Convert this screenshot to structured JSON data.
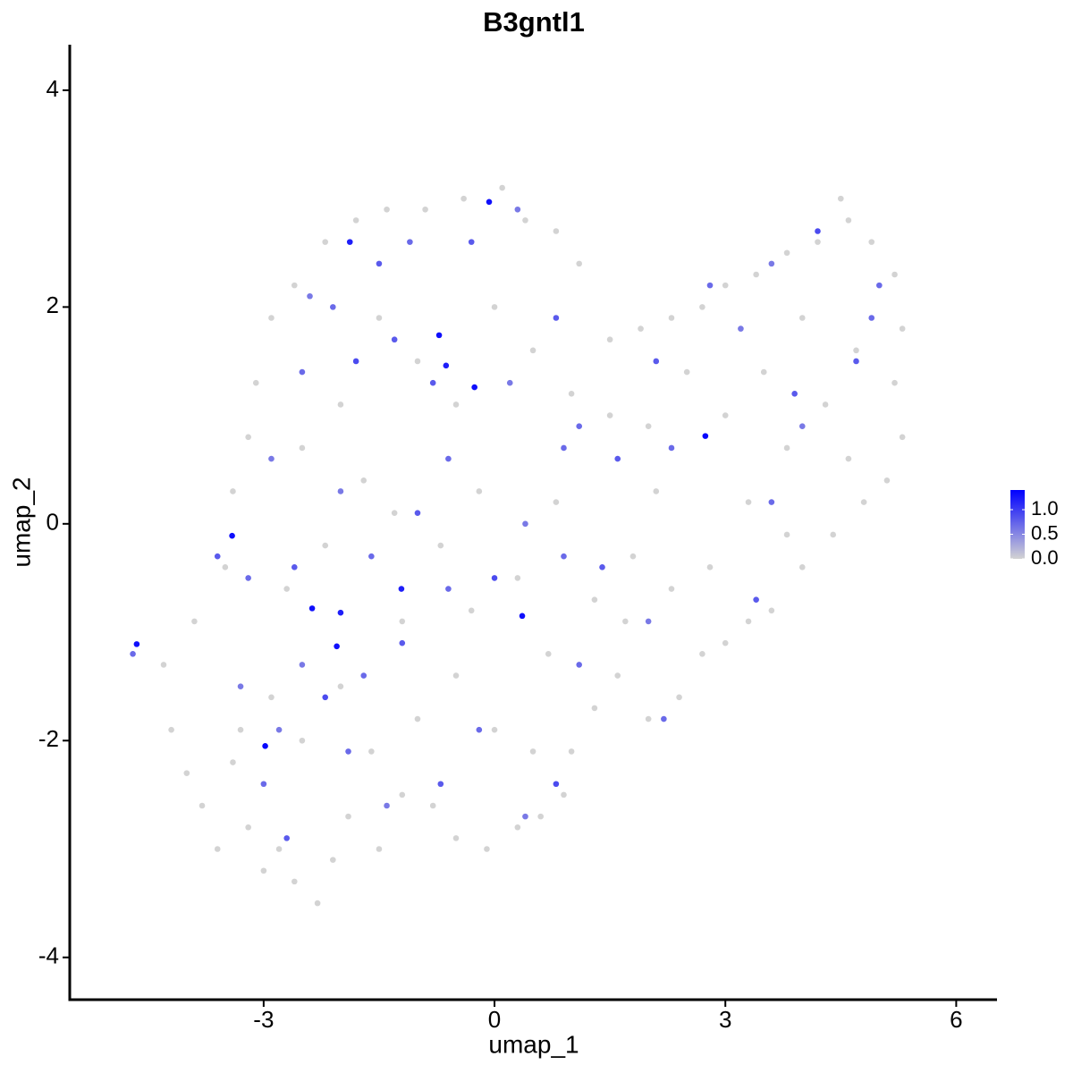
{
  "chart_data": {
    "type": "scatter",
    "title": "B3gntl1",
    "x_label": "umap_1",
    "y_label": "umap_2",
    "xlim": [
      -5.52,
      6.53
    ],
    "ylim": [
      -4.39,
      4.42
    ],
    "xticks": [
      -3,
      0,
      3,
      6
    ],
    "yticks": [
      -4,
      -2,
      0,
      2,
      4
    ],
    "low_color": "#d3d3d3",
    "high_color": "#0000ff",
    "colorbar": {
      "lim": [
        0,
        1.4
      ],
      "ticks": [
        {
          "value": 0,
          "label": "0.0"
        },
        {
          "value": 0.5,
          "label": "0.5"
        },
        {
          "value": 1,
          "label": "1.0"
        }
      ]
    },
    "points": [
      {
        "x": -4.2,
        "y": -1.9,
        "expression": 0
      },
      {
        "x": -4.0,
        "y": -2.3,
        "expression": 0
      },
      {
        "x": -3.8,
        "y": -2.6,
        "expression": 0
      },
      {
        "x": -3.6,
        "y": -3.0,
        "expression": 0
      },
      {
        "x": -3.4,
        "y": -2.2,
        "expression": 0
      },
      {
        "x": -3.2,
        "y": -2.8,
        "expression": 0
      },
      {
        "x": -3.0,
        "y": -3.2,
        "expression": 0
      },
      {
        "x": -2.8,
        "y": -3.0,
        "expression": 0
      },
      {
        "x": -2.6,
        "y": -3.3,
        "expression": 0
      },
      {
        "x": -2.3,
        "y": -3.5,
        "expression": 0
      },
      {
        "x": -2.1,
        "y": -3.1,
        "expression": 0
      },
      {
        "x": -1.9,
        "y": -2.7,
        "expression": 0
      },
      {
        "x": -1.5,
        "y": -3.0,
        "expression": 0
      },
      {
        "x": -1.2,
        "y": -2.5,
        "expression": 0
      },
      {
        "x": -0.8,
        "y": -2.6,
        "expression": 0
      },
      {
        "x": -0.5,
        "y": -2.9,
        "expression": 0
      },
      {
        "x": -0.1,
        "y": -3.0,
        "expression": 0
      },
      {
        "x": 0.3,
        "y": -2.8,
        "expression": 0
      },
      {
        "x": 0.6,
        "y": -2.7,
        "expression": 0
      },
      {
        "x": 0.9,
        "y": -2.5,
        "expression": 0
      },
      {
        "x": 1.0,
        "y": -2.1,
        "expression": 0
      },
      {
        "x": 1.3,
        "y": -1.7,
        "expression": 0
      },
      {
        "x": 1.6,
        "y": -1.4,
        "expression": 0
      },
      {
        "x": 2.0,
        "y": -1.8,
        "expression": 0
      },
      {
        "x": 2.4,
        "y": -1.6,
        "expression": 0
      },
      {
        "x": 2.7,
        "y": -1.2,
        "expression": 0
      },
      {
        "x": 3.0,
        "y": -1.1,
        "expression": 0
      },
      {
        "x": 3.3,
        "y": -0.9,
        "expression": 0
      },
      {
        "x": 3.6,
        "y": -0.8,
        "expression": 0
      },
      {
        "x": 4.0,
        "y": -0.4,
        "expression": 0
      },
      {
        "x": 4.4,
        "y": -0.1,
        "expression": 0
      },
      {
        "x": 4.8,
        "y": 0.2,
        "expression": 0
      },
      {
        "x": 5.1,
        "y": 0.4,
        "expression": 0
      },
      {
        "x": 5.3,
        "y": 0.8,
        "expression": 0
      },
      {
        "x": 5.2,
        "y": 1.3,
        "expression": 0
      },
      {
        "x": 5.3,
        "y": 1.8,
        "expression": 0
      },
      {
        "x": 5.2,
        "y": 2.3,
        "expression": 0
      },
      {
        "x": 4.9,
        "y": 2.6,
        "expression": 0
      },
      {
        "x": 4.6,
        "y": 2.8,
        "expression": 0
      },
      {
        "x": 4.5,
        "y": 3.0,
        "expression": 0
      },
      {
        "x": 4.2,
        "y": 2.6,
        "expression": 0
      },
      {
        "x": 3.8,
        "y": 2.5,
        "expression": 0
      },
      {
        "x": 3.4,
        "y": 2.3,
        "expression": 0
      },
      {
        "x": 3.0,
        "y": 2.2,
        "expression": 0
      },
      {
        "x": 2.7,
        "y": 2.0,
        "expression": 0
      },
      {
        "x": 2.3,
        "y": 1.9,
        "expression": 0
      },
      {
        "x": 1.9,
        "y": 1.8,
        "expression": 0
      },
      {
        "x": 1.5,
        "y": 1.7,
        "expression": 0
      },
      {
        "x": 1.1,
        "y": 2.4,
        "expression": 0
      },
      {
        "x": 0.8,
        "y": 2.7,
        "expression": 0
      },
      {
        "x": 0.4,
        "y": 2.8,
        "expression": 0
      },
      {
        "x": 0.1,
        "y": 3.1,
        "expression": 0
      },
      {
        "x": -0.4,
        "y": 3.0,
        "expression": 0
      },
      {
        "x": -0.9,
        "y": 2.9,
        "expression": 0
      },
      {
        "x": -1.4,
        "y": 2.9,
        "expression": 0
      },
      {
        "x": -1.8,
        "y": 2.8,
        "expression": 0
      },
      {
        "x": -2.2,
        "y": 2.6,
        "expression": 0
      },
      {
        "x": -2.6,
        "y": 2.2,
        "expression": 0
      },
      {
        "x": -2.9,
        "y": 1.9,
        "expression": 0
      },
      {
        "x": -3.1,
        "y": 1.3,
        "expression": 0
      },
      {
        "x": -3.2,
        "y": 0.8,
        "expression": 0
      },
      {
        "x": -3.4,
        "y": 0.3,
        "expression": 0
      },
      {
        "x": -3.5,
        "y": -0.4,
        "expression": 0
      },
      {
        "x": -3.9,
        "y": -0.9,
        "expression": 0
      },
      {
        "x": -4.3,
        "y": -1.3,
        "expression": 0
      },
      {
        "x": -2.5,
        "y": -2.0,
        "expression": 0
      },
      {
        "x": -2.0,
        "y": -1.5,
        "expression": 0
      },
      {
        "x": -1.6,
        "y": -2.1,
        "expression": 0
      },
      {
        "x": -1.0,
        "y": -1.8,
        "expression": 0
      },
      {
        "x": -0.5,
        "y": -1.4,
        "expression": 0
      },
      {
        "x": 0.0,
        "y": -1.9,
        "expression": 0
      },
      {
        "x": 0.5,
        "y": -2.1,
        "expression": 0
      },
      {
        "x": -2.7,
        "y": -0.6,
        "expression": 0
      },
      {
        "x": -2.2,
        "y": -0.2,
        "expression": 0
      },
      {
        "x": -1.7,
        "y": 0.4,
        "expression": 0
      },
      {
        "x": -1.2,
        "y": -0.9,
        "expression": 0
      },
      {
        "x": -0.7,
        "y": -0.2,
        "expression": 0
      },
      {
        "x": -0.2,
        "y": 0.3,
        "expression": 0
      },
      {
        "x": 0.3,
        "y": -0.5,
        "expression": 0
      },
      {
        "x": 0.8,
        "y": 0.2,
        "expression": 0
      },
      {
        "x": 1.3,
        "y": -0.7,
        "expression": 0
      },
      {
        "x": 1.8,
        "y": -0.3,
        "expression": 0
      },
      {
        "x": 2.3,
        "y": -0.6,
        "expression": 0
      },
      {
        "x": 2.8,
        "y": -0.4,
        "expression": 0
      },
      {
        "x": 3.3,
        "y": 0.2,
        "expression": 0
      },
      {
        "x": 3.8,
        "y": 0.7,
        "expression": 0
      },
      {
        "x": 4.3,
        "y": 1.1,
        "expression": 0
      },
      {
        "x": 4.7,
        "y": 1.6,
        "expression": 0
      },
      {
        "x": 3.5,
        "y": 1.4,
        "expression": 0
      },
      {
        "x": 3.0,
        "y": 1.0,
        "expression": 0
      },
      {
        "x": 2.5,
        "y": 1.4,
        "expression": 0
      },
      {
        "x": 2.0,
        "y": 0.9,
        "expression": 0
      },
      {
        "x": 1.5,
        "y": 1.0,
        "expression": 0
      },
      {
        "x": 1.0,
        "y": 1.2,
        "expression": 0
      },
      {
        "x": 0.5,
        "y": 1.6,
        "expression": 0
      },
      {
        "x": 0.0,
        "y": 2.0,
        "expression": 0
      },
      {
        "x": -0.5,
        "y": 1.1,
        "expression": 0
      },
      {
        "x": -1.0,
        "y": 1.5,
        "expression": 0
      },
      {
        "x": -1.5,
        "y": 1.9,
        "expression": 0
      },
      {
        "x": -2.0,
        "y": 1.1,
        "expression": 0
      },
      {
        "x": -2.5,
        "y": 0.7,
        "expression": 0
      },
      {
        "x": -2.9,
        "y": -1.6,
        "expression": 0
      },
      {
        "x": -3.3,
        "y": -1.9,
        "expression": 0
      },
      {
        "x": -1.3,
        "y": 0.1,
        "expression": 0
      },
      {
        "x": -0.3,
        "y": -0.8,
        "expression": 0
      },
      {
        "x": 0.7,
        "y": -1.2,
        "expression": 0
      },
      {
        "x": 1.7,
        "y": -0.9,
        "expression": 0
      },
      {
        "x": 2.1,
        "y": 0.3,
        "expression": 0
      },
      {
        "x": 4.0,
        "y": 1.9,
        "expression": 0
      },
      {
        "x": 4.6,
        "y": 0.6,
        "expression": 0
      },
      {
        "x": 3.8,
        "y": -0.1,
        "expression": 0
      },
      {
        "x": -4.7,
        "y": -1.2,
        "expression": 0.7
      },
      {
        "x": -3.6,
        "y": -0.3,
        "expression": 0.8
      },
      {
        "x": -3.3,
        "y": -1.5,
        "expression": 0.6
      },
      {
        "x": -3.0,
        "y": -2.4,
        "expression": 0.7
      },
      {
        "x": -2.7,
        "y": -2.9,
        "expression": 0.8
      },
      {
        "x": -2.5,
        "y": -1.3,
        "expression": 0.6
      },
      {
        "x": -2.2,
        "y": -1.6,
        "expression": 0.9
      },
      {
        "x": -1.9,
        "y": -2.1,
        "expression": 0.7
      },
      {
        "x": -1.4,
        "y": -2.6,
        "expression": 0.6
      },
      {
        "x": -0.7,
        "y": -2.4,
        "expression": 0.8
      },
      {
        "x": -0.2,
        "y": -1.9,
        "expression": 0.7
      },
      {
        "x": 0.4,
        "y": -2.7,
        "expression": 0.6
      },
      {
        "x": 0.8,
        "y": -2.4,
        "expression": 0.9
      },
      {
        "x": 1.1,
        "y": -1.3,
        "expression": 0.7
      },
      {
        "x": 1.4,
        "y": -0.4,
        "expression": 0.8
      },
      {
        "x": 2.2,
        "y": -1.8,
        "expression": 0.7
      },
      {
        "x": 2.0,
        "y": -0.9,
        "expression": 0.6
      },
      {
        "x": 3.4,
        "y": -0.7,
        "expression": 0.8
      },
      {
        "x": 3.6,
        "y": 0.2,
        "expression": 0.7
      },
      {
        "x": 4.0,
        "y": 0.9,
        "expression": 0.6
      },
      {
        "x": 4.7,
        "y": 1.5,
        "expression": 0.8
      },
      {
        "x": 5.0,
        "y": 2.2,
        "expression": 0.7
      },
      {
        "x": 4.2,
        "y": 2.7,
        "expression": 0.9
      },
      {
        "x": 3.6,
        "y": 2.4,
        "expression": 0.6
      },
      {
        "x": 2.8,
        "y": 2.2,
        "expression": 0.7
      },
      {
        "x": 2.1,
        "y": 1.5,
        "expression": 0.8
      },
      {
        "x": 1.1,
        "y": 0.9,
        "expression": 0.7
      },
      {
        "x": 0.8,
        "y": 1.9,
        "expression": 0.8
      },
      {
        "x": 0.2,
        "y": 1.3,
        "expression": 0.6
      },
      {
        "x": -0.6,
        "y": 0.6,
        "expression": 0.7
      },
      {
        "x": -1.3,
        "y": 1.7,
        "expression": 0.8
      },
      {
        "x": -1.8,
        "y": 1.5,
        "expression": 0.9
      },
      {
        "x": -2.5,
        "y": 1.4,
        "expression": 0.7
      },
      {
        "x": -2.9,
        "y": 0.6,
        "expression": 0.6
      },
      {
        "x": -3.2,
        "y": -0.5,
        "expression": 0.7
      },
      {
        "x": -2.6,
        "y": -0.4,
        "expression": 0.8
      },
      {
        "x": -2.0,
        "y": 0.3,
        "expression": 0.6
      },
      {
        "x": -1.6,
        "y": -0.3,
        "expression": 0.7
      },
      {
        "x": -1.0,
        "y": 0.1,
        "expression": 0.8
      },
      {
        "x": -0.6,
        "y": -0.6,
        "expression": 0.7
      },
      {
        "x": 0.0,
        "y": -0.5,
        "expression": 0.9
      },
      {
        "x": 0.4,
        "y": 0.0,
        "expression": 0.6
      },
      {
        "x": 0.9,
        "y": -0.3,
        "expression": 0.7
      },
      {
        "x": 1.6,
        "y": 0.6,
        "expression": 0.8
      },
      {
        "x": 2.3,
        "y": 0.7,
        "expression": 0.7
      },
      {
        "x": 3.2,
        "y": 1.8,
        "expression": 0.6
      },
      {
        "x": 3.9,
        "y": 1.2,
        "expression": 0.8
      },
      {
        "x": 4.9,
        "y": 1.9,
        "expression": 0.7
      },
      {
        "x": -1.1,
        "y": 2.6,
        "expression": 0.7
      },
      {
        "x": -0.3,
        "y": 2.6,
        "expression": 0.8
      },
      {
        "x": 0.3,
        "y": 2.9,
        "expression": 0.6
      },
      {
        "x": -2.1,
        "y": 2.0,
        "expression": 0.7
      },
      {
        "x": -1.5,
        "y": 2.4,
        "expression": 0.8
      },
      {
        "x": -2.4,
        "y": 2.1,
        "expression": 0.6
      },
      {
        "x": 0.9,
        "y": 0.7,
        "expression": 0.7
      },
      {
        "x": -0.8,
        "y": 1.3,
        "expression": 0.8
      },
      {
        "x": -1.7,
        "y": -1.4,
        "expression": 0.7
      },
      {
        "x": -2.8,
        "y": -1.9,
        "expression": 0.6
      },
      {
        "x": -1.2,
        "y": -1.1,
        "expression": 0.8
      },
      {
        "x": -4.65,
        "y": -1.11,
        "expression": 1.3
      },
      {
        "x": -0.72,
        "y": 1.74,
        "expression": 1.3
      },
      {
        "x": -0.63,
        "y": 1.46,
        "expression": 1.2
      },
      {
        "x": -0.26,
        "y": 1.26,
        "expression": 1.3
      },
      {
        "x": -1.88,
        "y": 2.6,
        "expression": 1.2
      },
      {
        "x": -0.07,
        "y": 2.97,
        "expression": 1.3
      },
      {
        "x": -1.21,
        "y": -0.6,
        "expression": 1.2
      },
      {
        "x": -2.37,
        "y": -0.78,
        "expression": 1.3
      },
      {
        "x": -2.0,
        "y": -0.82,
        "expression": 1.2
      },
      {
        "x": -2.05,
        "y": -1.13,
        "expression": 1.3
      },
      {
        "x": -2.98,
        "y": -2.05,
        "expression": 1.35
      },
      {
        "x": 0.36,
        "y": -0.85,
        "expression": 1.3
      },
      {
        "x": 2.74,
        "y": 0.81,
        "expression": 1.35
      },
      {
        "x": -3.41,
        "y": -0.11,
        "expression": 1.3
      }
    ]
  }
}
